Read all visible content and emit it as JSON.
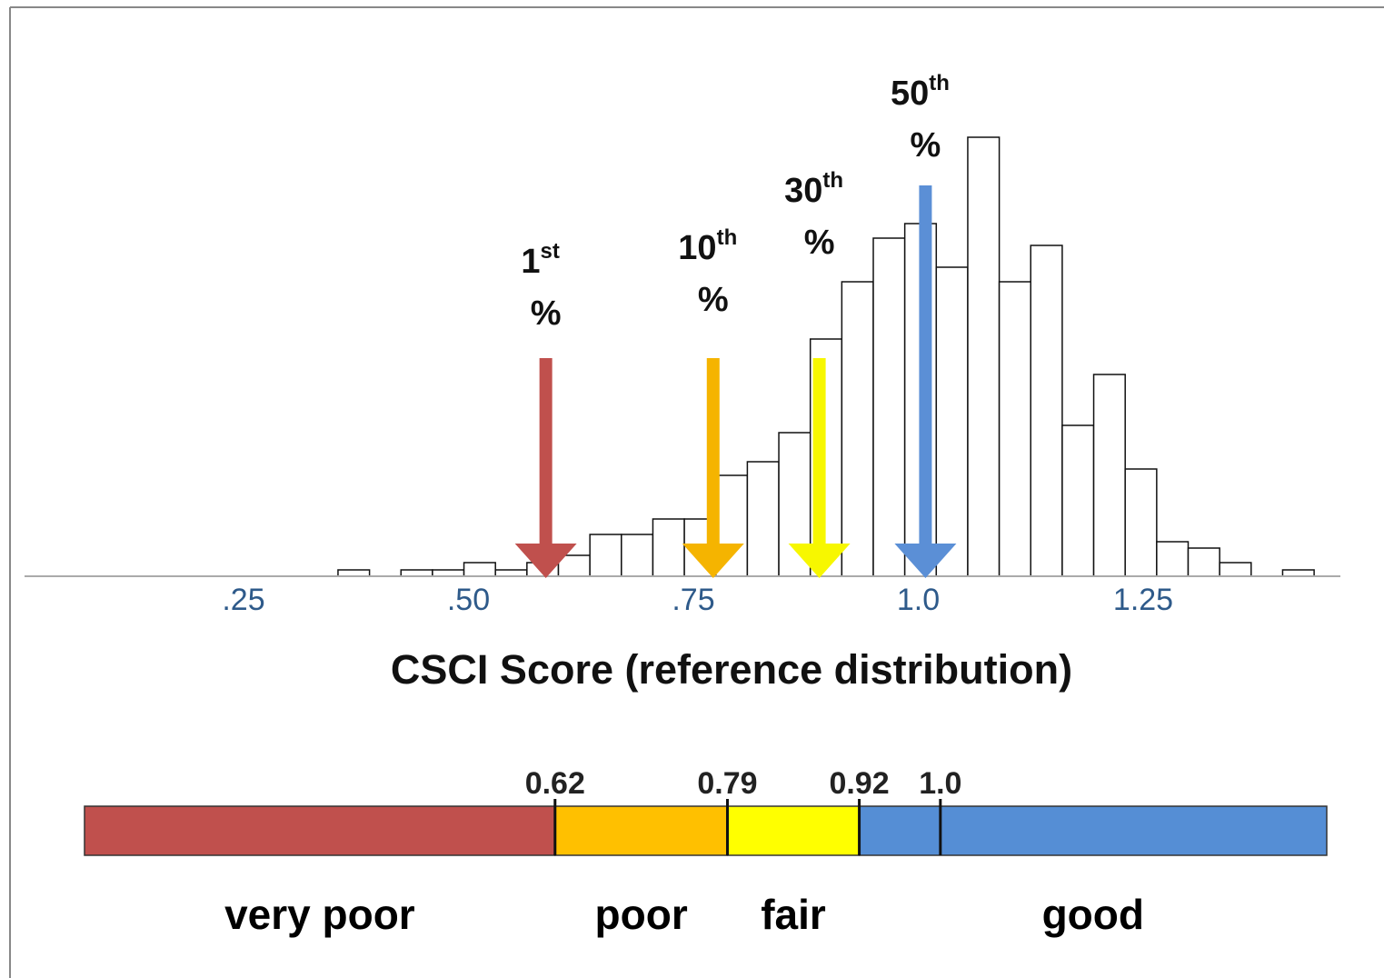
{
  "chart_data": [
    {
      "type": "histogram",
      "x_label": "CSCI Score (reference distribution)",
      "bins": [
        0.355,
        0.39,
        0.425,
        0.46,
        0.495,
        0.53,
        0.565,
        0.6,
        0.635,
        0.67,
        0.705,
        0.74,
        0.775,
        0.81,
        0.845,
        0.88,
        0.915,
        0.95,
        0.985,
        1.02,
        1.055,
        1.09,
        1.125,
        1.16,
        1.195,
        1.23,
        1.265,
        1.3,
        1.335,
        1.37,
        1.405,
        1.44
      ],
      "values": [
        7,
        0,
        7,
        7,
        15,
        7,
        15,
        23,
        46,
        46,
        63,
        63,
        111,
        126,
        158,
        261,
        324,
        372,
        388,
        340,
        483,
        324,
        364,
        166,
        222,
        118,
        38,
        31,
        15,
        0,
        7
      ],
      "xlim": [
        0,
        1.47
      ],
      "xticks": [
        {
          "value": 0.25,
          "label": ".25"
        },
        {
          "value": 0.5,
          "label": ".50"
        },
        {
          "value": 0.75,
          "label": ".75"
        },
        {
          "value": 1,
          "label": "1.0"
        },
        1.25
      ],
      "ylim": [
        0,
        500
      ],
      "markers": [
        {
          "number": "1",
          "suffix": "st",
          "unit": "%",
          "x": 0.586,
          "color": "#c0504d"
        },
        {
          "number": "10",
          "suffix": "th",
          "unit": "%",
          "x": 0.772,
          "color": "#f5b400"
        },
        {
          "number": "30",
          "suffix": "th",
          "unit": "%",
          "x": 0.89,
          "color": "#f7f700"
        },
        {
          "number": "50",
          "suffix": "th",
          "unit": "%",
          "x": 1.008,
          "color": "#5b8fd6"
        }
      ]
    },
    {
      "type": "band",
      "xlim": [
        0.156,
        1.381
      ],
      "thresholds": [
        0.62,
        0.79,
        0.92,
        {
          "value": 1,
          "label": "1.0"
        }
      ],
      "segments": [
        {
          "name": "very poor",
          "color": "#c0504d"
        },
        {
          "name": "poor",
          "color": "#ffc000"
        },
        {
          "name": "fair",
          "color": "#ffff00"
        },
        {
          "name": "good",
          "color": "#558ed5"
        }
      ]
    }
  ]
}
